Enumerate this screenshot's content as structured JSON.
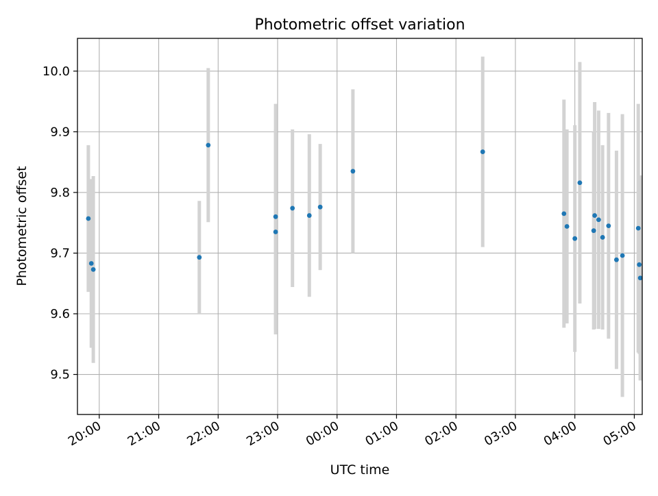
{
  "chart_data": {
    "type": "scatter",
    "title": "Photometric offset variation",
    "xlabel": "UTC time",
    "ylabel": "Photometric offset",
    "x_domain": [
      "19:38",
      "05:08"
    ],
    "ylim": [
      9.434,
      10.054
    ],
    "x_ticks": [
      "20:00",
      "21:00",
      "22:00",
      "23:00",
      "00:00",
      "01:00",
      "02:00",
      "03:00",
      "04:00",
      "05:00"
    ],
    "y_ticks": [
      "9.5",
      "9.6",
      "9.7",
      "9.8",
      "9.9",
      "10.0"
    ],
    "grid": true,
    "colors": {
      "points": "#1f77b4",
      "errorbars": "#d3d3d3",
      "grid": "#b0b0b0",
      "axes": "#000000"
    },
    "series": [
      {
        "points": [
          {
            "x": "19:49",
            "y": 9.757,
            "err": 0.121
          },
          {
            "x": "19:52",
            "y": 9.683,
            "err": 0.139
          },
          {
            "x": "19:54",
            "y": 9.673,
            "err": 0.154
          },
          {
            "x": "21:41",
            "y": 9.693,
            "err": 0.093
          },
          {
            "x": "21:50",
            "y": 9.878,
            "err": 0.127
          },
          {
            "x": "22:58",
            "y": 9.76,
            "err": 0.186
          },
          {
            "x": "22:58",
            "y": 9.735,
            "err": 0.169
          },
          {
            "x": "23:15",
            "y": 9.774,
            "err": 0.13
          },
          {
            "x": "23:32",
            "y": 9.762,
            "err": 0.134
          },
          {
            "x": "23:43",
            "y": 9.776,
            "err": 0.104
          },
          {
            "x": "00:16",
            "y": 9.835,
            "err": 0.135
          },
          {
            "x": "02:27",
            "y": 9.867,
            "err": 0.157
          },
          {
            "x": "03:49",
            "y": 9.765,
            "err": 0.188
          },
          {
            "x": "03:52",
            "y": 9.744,
            "err": 0.16
          },
          {
            "x": "04:00",
            "y": 9.724,
            "err": 0.187
          },
          {
            "x": "04:05",
            "y": 9.816,
            "err": 0.199
          },
          {
            "x": "04:19",
            "y": 9.737,
            "err": 0.163
          },
          {
            "x": "04:20",
            "y": 9.762,
            "err": 0.187
          },
          {
            "x": "04:24",
            "y": 9.755,
            "err": 0.18
          },
          {
            "x": "04:28",
            "y": 9.726,
            "err": 0.152
          },
          {
            "x": "04:34",
            "y": 9.745,
            "err": 0.186
          },
          {
            "x": "04:42",
            "y": 9.689,
            "err": 0.18
          },
          {
            "x": "04:48",
            "y": 9.696,
            "err": 0.233
          },
          {
            "x": "05:04",
            "y": 9.741,
            "err": 0.205
          },
          {
            "x": "05:05",
            "y": 9.681,
            "err": 0.147
          },
          {
            "x": "05:06",
            "y": 9.659,
            "err": 0.169
          }
        ]
      }
    ]
  }
}
